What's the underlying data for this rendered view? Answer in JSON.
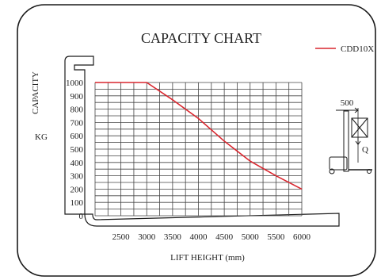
{
  "chart_data": {
    "type": "line",
    "title": "CAPACITY CHART",
    "ylabel": "CAPACITY",
    "yunit": "KG",
    "xlabel": "LIFT HEIGHT (mm)",
    "x_ticks": [
      2500,
      3000,
      3500,
      4000,
      4500,
      5000,
      5500,
      6000
    ],
    "y_ticks": [
      0,
      100,
      200,
      300,
      400,
      500,
      600,
      700,
      800,
      900,
      1000
    ],
    "xlim": [
      2000,
      6000
    ],
    "ylim": [
      0,
      1000
    ],
    "grid": true,
    "legend_position": "top-right",
    "series": [
      {
        "name": "CDD10X",
        "color": "#d9262e",
        "points": [
          [
            2000,
            1000
          ],
          [
            3000,
            1000
          ],
          [
            3500,
            870
          ],
          [
            4000,
            730
          ],
          [
            4500,
            560
          ],
          [
            5000,
            410
          ],
          [
            5500,
            300
          ],
          [
            6000,
            200
          ]
        ]
      }
    ],
    "inset": {
      "dimension_label": "500",
      "load_label": "Q"
    }
  },
  "colors": {
    "line": "#d9262e",
    "frame": "#1a1a1a",
    "grid": "#444444"
  }
}
